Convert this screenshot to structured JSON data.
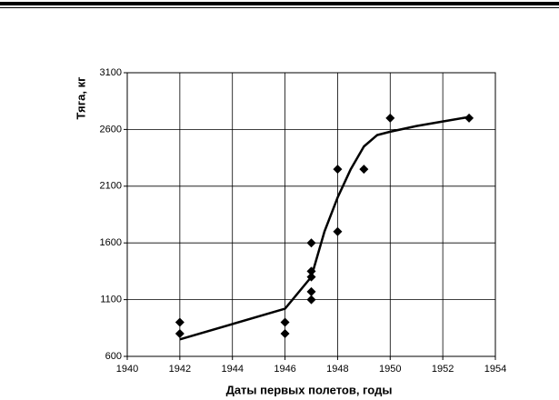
{
  "chart_data": {
    "type": "scatter",
    "x_label": "Даты первых полетов, годы",
    "y_label": "Тяга, кг",
    "xlim": [
      1940,
      1954
    ],
    "xticks": [
      1940,
      1942,
      1944,
      1946,
      1948,
      1950,
      1952,
      1954
    ],
    "ylim": [
      600,
      3100
    ],
    "yticks": [
      600,
      1100,
      1600,
      2100,
      2600,
      3100
    ],
    "grid": true,
    "color": "#000000",
    "points": {
      "x": [
        1942,
        1942,
        1946,
        1946,
        1947,
        1947,
        1947,
        1947,
        1947,
        1948,
        1948,
        1949,
        1950,
        1953
      ],
      "values": [
        900,
        800,
        900,
        800,
        1600,
        1350,
        1300,
        1170,
        1100,
        2250,
        1700,
        2250,
        2700,
        2700
      ]
    },
    "trend": {
      "x": [
        1942,
        1946,
        1947,
        1947.5,
        1948,
        1948.5,
        1949,
        1949.5,
        1950,
        1951,
        1952,
        1953
      ],
      "values": [
        750,
        1020,
        1300,
        1700,
        2000,
        2250,
        2450,
        2550,
        2580,
        2630,
        2670,
        2710
      ]
    }
  }
}
